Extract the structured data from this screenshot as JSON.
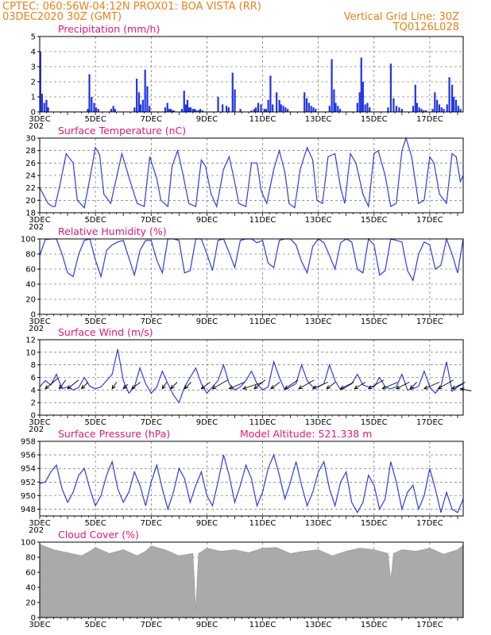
{
  "header": {
    "line1_left": "CPTEC:   060:56W-04:12N   PROX01: BOA VISTA (RR)",
    "line2_left": "03DEC2020 30Z (GMT)",
    "line2_right": "Vertical Grid Line: 30Z",
    "line3_right": "TQ0126L028"
  },
  "colors": {
    "header": "#e8801c",
    "title": "#e0197a",
    "line": "#2b3fe0",
    "bar": "#1f33e8",
    "cloud": "#aaaaaa"
  },
  "x_axis": {
    "labels": [
      "3DEC",
      "5DEC",
      "7DEC",
      "9DEC",
      "11DEC",
      "13DEC",
      "15DEC",
      "17DEC"
    ],
    "clipped_year_label": "202"
  },
  "extra_label": "Model Altitude: 521.338 m",
  "chart_data": [
    {
      "id": "precip",
      "type": "bar",
      "title": "Precipitation (mm/h)",
      "ylim": [
        0,
        5
      ],
      "yticks": [
        0,
        1,
        2,
        3,
        4,
        5
      ],
      "x_unit": "days since 3DEC 00Z",
      "xlim": [
        0,
        15.2
      ],
      "x": [
        0.02,
        0.08,
        0.16,
        0.24,
        0.3,
        1.72,
        1.78,
        1.86,
        1.95,
        2.02,
        2.1,
        2.56,
        2.64,
        2.7,
        3.4,
        3.48,
        3.56,
        3.62,
        3.7,
        3.78,
        3.86,
        3.94,
        4.5,
        4.58,
        4.64,
        4.7,
        4.76,
        4.82,
        5.1,
        5.18,
        5.24,
        5.3,
        5.36,
        5.42,
        5.5,
        5.56,
        5.62,
        5.7,
        5.76,
        5.84,
        6.4,
        6.56,
        6.7,
        6.78,
        6.92,
        7.0,
        7.2,
        7.6,
        7.7,
        7.76,
        7.84,
        7.94,
        8.06,
        8.12,
        8.2,
        8.28,
        8.36,
        8.5,
        8.6,
        8.66,
        8.74,
        8.82,
        8.9,
        9.5,
        9.58,
        9.66,
        9.74,
        9.82,
        9.9,
        10.4,
        10.48,
        10.56,
        10.62,
        10.7,
        10.78,
        11.4,
        11.48,
        11.54,
        11.6,
        11.68,
        11.76,
        11.84,
        12.5,
        12.6,
        12.7,
        12.8,
        12.9,
        13.0,
        13.4,
        13.48,
        13.54,
        13.62,
        13.7,
        13.78,
        13.86,
        14.1,
        14.18,
        14.26,
        14.34,
        14.42,
        14.5,
        14.62,
        14.7,
        14.8,
        14.86,
        14.94,
        15.02,
        15.1
      ],
      "values": [
        4.0,
        1.2,
        0.6,
        0.8,
        0.3,
        0.2,
        2.5,
        1.0,
        0.6,
        0.3,
        0.2,
        0.2,
        0.4,
        0.2,
        0.3,
        2.2,
        1.3,
        0.5,
        0.8,
        2.8,
        1.7,
        0.4,
        0.3,
        0.6,
        0.2,
        0.2,
        0.1,
        0.1,
        0.2,
        1.4,
        0.5,
        0.8,
        0.3,
        0.3,
        0.2,
        0.2,
        0.1,
        0.1,
        0.2,
        0.1,
        1.0,
        0.5,
        0.4,
        0.3,
        2.6,
        1.5,
        0.2,
        0.1,
        0.2,
        0.3,
        0.6,
        0.5,
        0.2,
        0.2,
        0.8,
        2.4,
        0.5,
        1.3,
        0.8,
        0.5,
        0.4,
        0.3,
        0.2,
        1.3,
        0.9,
        0.6,
        0.4,
        0.3,
        0.2,
        0.4,
        3.5,
        1.5,
        0.6,
        0.4,
        0.2,
        0.6,
        1.3,
        3.6,
        2.0,
        0.5,
        0.6,
        0.3,
        0.3,
        3.2,
        0.9,
        0.4,
        0.3,
        0.2,
        0.4,
        1.8,
        0.6,
        0.3,
        0.2,
        0.1,
        0.1,
        0.2,
        1.3,
        0.8,
        0.5,
        0.3,
        0.2,
        0.5,
        2.3,
        1.8,
        1.0,
        0.8,
        0.4,
        0.2
      ]
    },
    {
      "id": "temp",
      "type": "line",
      "title": "Surface Temperature (nC)",
      "ylim": [
        18,
        30
      ],
      "yticks": [
        18,
        20,
        22,
        24,
        26,
        28,
        30
      ],
      "xlim": [
        0,
        15.2
      ],
      "x": [
        0.0,
        0.3,
        0.45,
        0.55,
        0.75,
        0.95,
        1.2,
        1.35,
        1.6,
        1.82,
        2.0,
        2.15,
        2.3,
        2.55,
        2.75,
        2.95,
        3.25,
        3.5,
        3.75,
        3.95,
        4.2,
        4.35,
        4.6,
        4.75,
        4.95,
        5.15,
        5.35,
        5.6,
        5.8,
        5.95,
        6.15,
        6.35,
        6.6,
        6.8,
        6.95,
        7.15,
        7.4,
        7.6,
        7.8,
        7.95,
        8.15,
        8.4,
        8.6,
        8.8,
        8.95,
        9.15,
        9.35,
        9.6,
        9.8,
        9.95,
        10.15,
        10.35,
        10.6,
        10.8,
        10.95,
        11.15,
        11.35,
        11.6,
        11.8,
        12.0,
        12.15,
        12.4,
        12.6,
        12.8,
        13.0,
        13.15,
        13.35,
        13.6,
        13.8,
        14.0,
        14.15,
        14.35,
        14.6,
        14.8,
        14.95,
        15.1,
        15.2
      ],
      "y": [
        22.0,
        19.5,
        19.0,
        19.0,
        23.0,
        27.5,
        26.0,
        20.0,
        18.8,
        24.0,
        28.5,
        27.3,
        21.0,
        19.5,
        23.5,
        27.5,
        23.0,
        19.5,
        19.0,
        27.0,
        23.5,
        20.0,
        19.0,
        25.5,
        28.0,
        24.0,
        19.5,
        19.0,
        26.5,
        25.5,
        21.0,
        19.0,
        25.0,
        27.0,
        24.0,
        19.5,
        19.0,
        26.0,
        26.0,
        21.5,
        19.5,
        25.0,
        28.0,
        24.5,
        19.5,
        18.8,
        25.0,
        28.5,
        26.5,
        20.0,
        19.5,
        27.0,
        27.5,
        22.0,
        19.5,
        27.5,
        26.0,
        21.0,
        19.0,
        27.5,
        28.0,
        24.0,
        19.0,
        19.5,
        28.0,
        30.0,
        27.0,
        19.5,
        20.0,
        27.0,
        26.0,
        21.0,
        19.5,
        27.5,
        27.0,
        23.0,
        24.0
      ]
    },
    {
      "id": "rh",
      "type": "line",
      "title": "Relative Humidity (%)",
      "ylim": [
        0,
        100
      ],
      "yticks": [
        0,
        20,
        40,
        60,
        80,
        100
      ],
      "xlim": [
        0,
        15.2
      ],
      "x": [
        0.0,
        0.2,
        0.4,
        0.6,
        0.8,
        1.0,
        1.2,
        1.4,
        1.6,
        1.8,
        2.0,
        2.2,
        2.4,
        2.6,
        2.8,
        3.0,
        3.2,
        3.4,
        3.6,
        3.8,
        4.0,
        4.2,
        4.4,
        4.6,
        4.8,
        5.0,
        5.2,
        5.4,
        5.6,
        5.8,
        6.0,
        6.2,
        6.4,
        6.6,
        6.8,
        7.0,
        7.2,
        7.4,
        7.6,
        7.8,
        8.0,
        8.2,
        8.4,
        8.6,
        8.8,
        9.0,
        9.2,
        9.4,
        9.6,
        9.8,
        10.0,
        10.2,
        10.4,
        10.6,
        10.8,
        11.0,
        11.2,
        11.4,
        11.6,
        11.8,
        12.0,
        12.2,
        12.4,
        12.6,
        12.8,
        13.0,
        13.2,
        13.4,
        13.6,
        13.8,
        14.0,
        14.2,
        14.4,
        14.6,
        14.8,
        15.0,
        15.2
      ],
      "y": [
        78,
        99,
        100,
        100,
        80,
        55,
        50,
        80,
        98,
        100,
        72,
        50,
        85,
        92,
        96,
        98,
        75,
        52,
        85,
        98,
        98,
        72,
        55,
        100,
        100,
        98,
        55,
        58,
        100,
        100,
        80,
        58,
        98,
        100,
        82,
        62,
        98,
        100,
        100,
        95,
        98,
        68,
        62,
        98,
        100,
        100,
        92,
        70,
        55,
        90,
        100,
        95,
        78,
        60,
        95,
        100,
        96,
        60,
        55,
        100,
        92,
        52,
        58,
        100,
        98,
        96,
        58,
        45,
        80,
        96,
        92,
        60,
        65,
        100,
        80,
        55,
        100
      ]
    },
    {
      "id": "wind",
      "type": "line",
      "title": "Surface Wind (m/s)",
      "ylim": [
        0,
        12
      ],
      "yticks": [
        0,
        2,
        4,
        6,
        8,
        10,
        12
      ],
      "xlim": [
        0,
        15.2
      ],
      "x": [
        0.0,
        0.2,
        0.4,
        0.6,
        0.8,
        1.0,
        1.2,
        1.4,
        1.6,
        1.8,
        2.0,
        2.2,
        2.4,
        2.6,
        2.8,
        3.0,
        3.2,
        3.4,
        3.6,
        3.8,
        4.0,
        4.2,
        4.4,
        4.6,
        4.8,
        5.0,
        5.2,
        5.4,
        5.6,
        5.8,
        6.0,
        6.2,
        6.4,
        6.6,
        6.8,
        7.0,
        7.2,
        7.4,
        7.6,
        7.8,
        8.0,
        8.2,
        8.4,
        8.6,
        8.8,
        9.0,
        9.2,
        9.4,
        9.6,
        9.8,
        10.0,
        10.2,
        10.4,
        10.6,
        10.8,
        11.0,
        11.2,
        11.4,
        11.6,
        11.8,
        12.0,
        12.2,
        12.4,
        12.6,
        12.8,
        13.0,
        13.2,
        13.4,
        13.6,
        13.8,
        14.0,
        14.2,
        14.4,
        14.6,
        14.8,
        15.0,
        15.2
      ],
      "y": [
        4.5,
        5.5,
        4.8,
        6.5,
        4.2,
        4.5,
        4.0,
        4.4,
        6.0,
        4.6,
        4.2,
        4.5,
        5.5,
        6.5,
        10.5,
        5.5,
        3.5,
        4.5,
        7.5,
        5.0,
        3.5,
        4.5,
        7.0,
        5.0,
        3.2,
        2.0,
        4.5,
        6.0,
        7.5,
        5.0,
        3.5,
        4.5,
        5.5,
        8.0,
        5.0,
        4.0,
        4.5,
        5.5,
        7.0,
        5.0,
        4.0,
        4.5,
        8.5,
        6.0,
        4.0,
        4.5,
        5.0,
        8.0,
        5.5,
        4.5,
        4.5,
        5.0,
        8.0,
        5.5,
        4.0,
        4.5,
        5.0,
        6.5,
        4.8,
        4.5,
        4.5,
        6.0,
        4.5,
        4.2,
        4.5,
        6.5,
        4.0,
        4.2,
        4.6,
        7.0,
        4.5,
        3.5,
        4.5,
        8.5,
        3.8,
        4.5,
        5.0
      ]
    },
    {
      "id": "wind_dir",
      "type": "scatter",
      "x": [
        0.2,
        0.7,
        1.0,
        1.5,
        2.6,
        3.0,
        3.3,
        4.4,
        4.7,
        5.2,
        5.8,
        6.2,
        6.8,
        7.3,
        7.7,
        8.3,
        8.8,
        9.3,
        9.8,
        10.3,
        10.8,
        11.3,
        11.8,
        12.3,
        12.8,
        13.3,
        13.8,
        14.3,
        14.8,
        15.1
      ],
      "u": [
        3.0,
        1.5,
        2.5,
        1.5,
        1.0,
        1.0,
        2.0,
        1.0,
        1.5,
        1.5,
        2.0,
        3.5,
        3.5,
        4.5,
        2.5,
        2.0,
        3.0,
        3.5,
        3.5,
        2.0,
        3.0,
        2.5,
        3.5,
        3.5,
        3.0,
        1.5,
        3.5,
        3.5,
        3.0,
        2.5
      ],
      "v": [
        2.5,
        2.0,
        2.0,
        1.5,
        1.5,
        1.0,
        1.5,
        1.5,
        1.5,
        1.5,
        1.5,
        2.0,
        1.5,
        1.5,
        2.0,
        1.5,
        2.0,
        2.0,
        1.5,
        1.5,
        1.5,
        1.5,
        2.0,
        1.5,
        1.5,
        1.5,
        1.5,
        2.0,
        1.5,
        -0.5
      ]
    },
    {
      "id": "pres",
      "type": "line",
      "title": "Surface Pressure (hPa)",
      "ylim": [
        947,
        958
      ],
      "yticks": [
        948,
        950,
        952,
        954,
        956,
        958
      ],
      "xlim": [
        0,
        15.2
      ],
      "x": [
        0.0,
        0.2,
        0.4,
        0.6,
        0.8,
        1.0,
        1.2,
        1.4,
        1.6,
        1.8,
        2.0,
        2.2,
        2.4,
        2.6,
        2.8,
        3.0,
        3.2,
        3.4,
        3.6,
        3.8,
        4.0,
        4.2,
        4.4,
        4.6,
        4.8,
        5.0,
        5.2,
        5.4,
        5.6,
        5.8,
        6.0,
        6.2,
        6.4,
        6.6,
        6.8,
        7.0,
        7.2,
        7.4,
        7.6,
        7.8,
        8.0,
        8.2,
        8.4,
        8.6,
        8.8,
        9.0,
        9.2,
        9.4,
        9.6,
        9.8,
        10.0,
        10.2,
        10.4,
        10.6,
        10.8,
        11.0,
        11.2,
        11.4,
        11.6,
        11.8,
        12.0,
        12.2,
        12.4,
        12.6,
        12.8,
        13.0,
        13.2,
        13.4,
        13.6,
        13.8,
        14.0,
        14.2,
        14.4,
        14.6,
        14.8,
        15.0,
        15.2
      ],
      "y": [
        951.8,
        952.0,
        953.5,
        954.5,
        951.0,
        949.0,
        950.5,
        953.0,
        954.0,
        951.0,
        948.5,
        950.0,
        953.0,
        955.0,
        951.0,
        949.0,
        950.5,
        953.5,
        951.5,
        948.5,
        952.0,
        954.5,
        951.0,
        948.0,
        950.5,
        954.0,
        952.5,
        949.0,
        951.5,
        953.5,
        950.0,
        948.5,
        952.0,
        956.0,
        953.0,
        949.0,
        951.5,
        954.5,
        952.5,
        948.5,
        950.5,
        954.0,
        956.0,
        953.0,
        949.5,
        952.0,
        955.0,
        951.5,
        948.5,
        950.5,
        953.5,
        955.0,
        951.0,
        948.5,
        952.0,
        953.5,
        949.0,
        947.5,
        949.0,
        953.0,
        951.5,
        948.0,
        949.5,
        955.0,
        952.0,
        948.0,
        950.5,
        951.5,
        948.0,
        950.0,
        954.0,
        951.0,
        947.5,
        950.5,
        948.0,
        947.5,
        949.5
      ]
    },
    {
      "id": "cloud",
      "type": "area",
      "title": "Cloud Cover (%)",
      "ylim": [
        0,
        100
      ],
      "yticks": [
        0,
        20,
        40,
        60,
        80,
        100
      ],
      "xlim": [
        0,
        15.2
      ],
      "x": [
        0.0,
        0.5,
        1.0,
        1.5,
        1.8,
        2.0,
        2.5,
        3.0,
        3.5,
        3.8,
        4.0,
        4.5,
        5.0,
        5.5,
        5.6,
        5.7,
        6.0,
        6.5,
        7.0,
        7.5,
        8.0,
        8.5,
        9.0,
        9.5,
        10.0,
        10.5,
        11.0,
        11.5,
        12.0,
        12.5,
        12.6,
        12.7,
        13.0,
        13.5,
        14.0,
        14.5,
        15.0,
        15.2
      ],
      "y": [
        97,
        90,
        86,
        82,
        88,
        93,
        85,
        90,
        82,
        88,
        95,
        90,
        82,
        85,
        10,
        85,
        92,
        88,
        90,
        86,
        92,
        93,
        85,
        88,
        90,
        82,
        88,
        92,
        90,
        85,
        50,
        85,
        90,
        88,
        92,
        84,
        90,
        96
      ]
    }
  ]
}
